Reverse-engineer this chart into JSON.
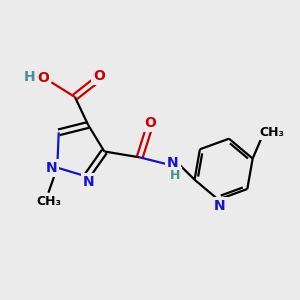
{
  "bg_color": "#ebebeb",
  "atom_colors": {
    "C": "#000000",
    "N": "#1414cc",
    "O": "#cc0000",
    "H": "#4a9090"
  },
  "figsize": [
    3.0,
    3.0
  ],
  "dpi": 100
}
